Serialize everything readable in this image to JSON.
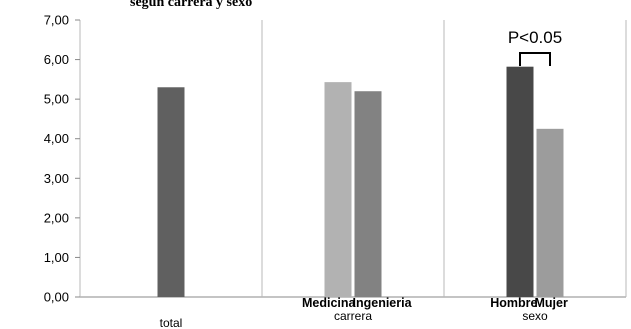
{
  "chart_data": {
    "type": "bar",
    "title": "según carrera y sexo",
    "ylim": [
      0,
      7
    ],
    "yticks": [
      "0,00",
      "1,00",
      "2,00",
      "3,00",
      "4,00",
      "5,00",
      "6,00",
      "7,00"
    ],
    "grid": true,
    "groups": [
      {
        "label": "total",
        "bars": [
          {
            "label": "",
            "value": 5.3,
            "color": "#606060"
          }
        ]
      },
      {
        "label": "carrera",
        "bars": [
          {
            "label": "Medicina",
            "value": 5.43,
            "color": "#b2b2b2"
          },
          {
            "label": "Ingenieria",
            "value": 5.2,
            "color": "#828282"
          }
        ]
      },
      {
        "label": "sexo",
        "bars": [
          {
            "label": "Hombre",
            "value": 5.82,
            "color": "#484848"
          },
          {
            "label": "Mujer",
            "value": 4.25,
            "color": "#9c9c9c"
          }
        ]
      }
    ],
    "annotation": {
      "text": "P<0.05",
      "between": [
        "Hombre",
        "Mujer"
      ]
    }
  }
}
